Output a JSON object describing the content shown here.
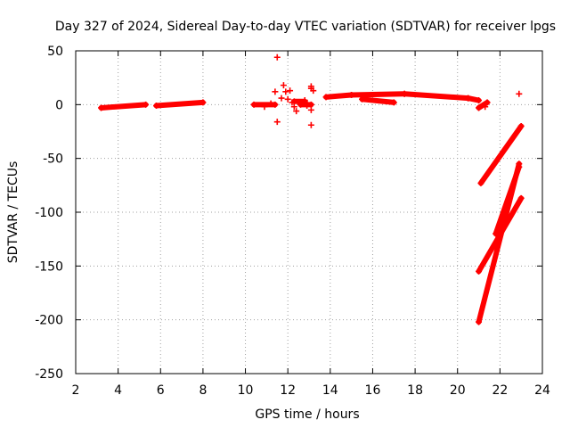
{
  "chart_data": {
    "type": "scatter",
    "title": "Day 327 of 2024, Sidereal Day-to-day VTEC variation (SDTVAR) for receiver lpgs",
    "xlabel": "GPS time / hours",
    "ylabel": "SDTVAR / TECUs",
    "xlim": [
      2,
      24
    ],
    "ylim": [
      -250,
      50
    ],
    "x_ticks": [
      "2",
      "4",
      "6",
      "8",
      "10",
      "12",
      "14",
      "16",
      "18",
      "20",
      "22",
      "24"
    ],
    "y_ticks": [
      "50",
      "0",
      "-50",
      "-100",
      "-150",
      "-200",
      "-250"
    ],
    "grid": true,
    "marker_color": "#ff0000",
    "segments": [
      {
        "x": [
          3.2,
          5.3
        ],
        "y": [
          -3,
          0
        ]
      },
      {
        "x": [
          5.8,
          8.0
        ],
        "y": [
          -1,
          2
        ]
      },
      {
        "x": [
          10.4,
          11.4
        ],
        "y": [
          0,
          0
        ]
      },
      {
        "x": [
          13.8,
          15.0
        ],
        "y": [
          7,
          9
        ]
      },
      {
        "x": [
          15.0,
          17.5
        ],
        "y": [
          9,
          10
        ]
      },
      {
        "x": [
          15.5,
          17.0
        ],
        "y": [
          5,
          2
        ]
      },
      {
        "x": [
          17.5,
          20.5
        ],
        "y": [
          10,
          6
        ]
      },
      {
        "x": [
          20.5,
          21.0
        ],
        "y": [
          6,
          4
        ]
      },
      {
        "x": [
          21.0,
          21.4
        ],
        "y": [
          -3,
          2
        ]
      },
      {
        "x": [
          21.1,
          23.0
        ],
        "y": [
          -73,
          -20
        ]
      },
      {
        "x": [
          21.0,
          23.0
        ],
        "y": [
          -155,
          -87
        ]
      },
      {
        "x": [
          21.0,
          22.9
        ],
        "y": [
          -202,
          -55
        ]
      },
      {
        "x": [
          21.8,
          22.9
        ],
        "y": [
          -120,
          -58
        ]
      },
      {
        "x": [
          12.3,
          12.8
        ],
        "y": [
          3,
          3
        ]
      },
      {
        "x": [
          12.6,
          13.1
        ],
        "y": [
          0,
          0
        ]
      }
    ],
    "points": [
      {
        "x": 11.5,
        "y": 44
      },
      {
        "x": 11.5,
        "y": -16
      },
      {
        "x": 11.4,
        "y": 12
      },
      {
        "x": 11.8,
        "y": 18
      },
      {
        "x": 11.9,
        "y": 12
      },
      {
        "x": 11.7,
        "y": 6
      },
      {
        "x": 12.1,
        "y": 13
      },
      {
        "x": 12.0,
        "y": 5
      },
      {
        "x": 12.2,
        "y": 2
      },
      {
        "x": 12.4,
        "y": -6
      },
      {
        "x": 12.3,
        "y": -2
      },
      {
        "x": 12.8,
        "y": 4
      },
      {
        "x": 12.9,
        "y": -1
      },
      {
        "x": 13.1,
        "y": 15
      },
      {
        "x": 13.1,
        "y": 17
      },
      {
        "x": 13.1,
        "y": -5
      },
      {
        "x": 13.1,
        "y": -19
      },
      {
        "x": 13.2,
        "y": 13
      },
      {
        "x": 10.9,
        "y": -2
      },
      {
        "x": 11.2,
        "y": 1
      },
      {
        "x": 22.9,
        "y": 10
      },
      {
        "x": 21.3,
        "y": -2
      }
    ]
  }
}
